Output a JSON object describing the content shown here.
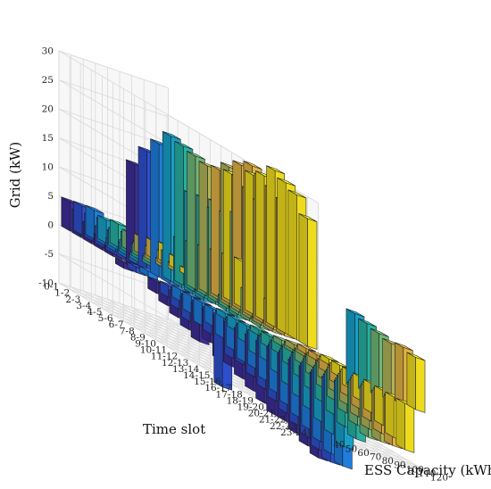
{
  "chart_data": {
    "type": "bar3d",
    "xlabel": "ESS Capacity (kWh)",
    "ylabel": "Time slot",
    "zlabel": "Grid (kW)",
    "zlim": [
      -10,
      30
    ],
    "z_ticks": [
      "-10",
      "-5",
      "0",
      "5",
      "10",
      "15",
      "20",
      "25",
      "30"
    ],
    "ess_capacities": [
      "40",
      "50",
      "60",
      "70",
      "80",
      "90",
      "100",
      "110",
      "120"
    ],
    "time_slots": [
      "0-1",
      "1-2",
      "2-3",
      "3-4",
      "4-5",
      "5-6",
      "6-7",
      "7-8",
      "8-9",
      "9-10",
      "10-11",
      "11-12",
      "12-13",
      "13-14",
      "14-15",
      "15-16",
      "16-17",
      "17-18",
      "18-19",
      "19-20",
      "20-21",
      "21-22",
      "22-23",
      "23-24"
    ],
    "colors": [
      "#3e2f9e",
      "#2f52d6",
      "#1f82e6",
      "#18a6d0",
      "#28b7a8",
      "#74be7c",
      "#b7ba5b",
      "#e9b847",
      "#f8e41f"
    ],
    "series": [
      {
        "capacity": "40",
        "values": [
          5,
          4,
          3,
          2,
          1,
          -1,
          18,
          0,
          -2,
          -3,
          -4,
          -5,
          -6,
          -5,
          -7,
          -7,
          -8,
          -9,
          -10,
          -11,
          -11,
          -12,
          -13,
          -14
        ]
      },
      {
        "capacity": "50",
        "values": [
          5,
          4,
          3,
          2,
          1,
          -1,
          21,
          0,
          -2,
          -3,
          -4,
          -3,
          -4,
          -12,
          -6,
          -6,
          -7,
          -8,
          -9,
          -10,
          -11,
          -12,
          -13,
          -14
        ]
      },
      {
        "capacity": "60",
        "values": [
          5,
          4,
          3,
          2,
          1,
          -1,
          23,
          5,
          -2,
          -3,
          -4,
          -3,
          -4,
          -5,
          -6,
          -6,
          -7,
          -8,
          -9,
          -10,
          -11,
          -12,
          -13,
          -14
        ]
      },
      {
        "capacity": "70",
        "values": [
          4,
          3,
          2,
          1,
          0,
          0,
          25,
          8,
          17,
          1,
          0,
          -1,
          -2,
          -3,
          -4,
          -4,
          -5,
          -6,
          -7,
          -8,
          -9,
          -10,
          -11,
          13
        ]
      },
      {
        "capacity": "80",
        "values": [
          4,
          3,
          2,
          1,
          0,
          0,
          24,
          8,
          17,
          16,
          2,
          1,
          0,
          -1,
          -2,
          -2,
          -3,
          -4,
          -5,
          -6,
          -7,
          -8,
          -9,
          12
        ]
      },
      {
        "capacity": "90",
        "values": [
          3,
          2,
          1,
          0,
          0,
          0,
          23,
          8,
          17,
          16,
          17,
          5,
          1,
          0,
          -1,
          -1,
          -2,
          -3,
          -4,
          -5,
          -6,
          -7,
          -8,
          11
        ]
      },
      {
        "capacity": "100",
        "values": [
          3,
          2,
          1,
          0,
          0,
          0,
          22,
          8,
          24,
          23,
          22,
          21,
          5,
          0,
          -1,
          -1,
          -2,
          -3,
          -4,
          -5,
          -6,
          -7,
          -8,
          10
        ]
      },
      {
        "capacity": "110",
        "values": [
          3,
          2,
          1,
          0,
          0,
          0,
          22,
          8,
          25,
          26,
          25,
          24,
          23,
          0,
          -1,
          -1,
          -2,
          -3,
          -4,
          -5,
          -6,
          -7,
          -8,
          10
        ]
      },
      {
        "capacity": "120",
        "values": [
          3,
          2,
          1,
          0,
          0,
          0,
          22,
          8,
          24,
          25,
          27,
          26,
          25,
          22,
          0,
          -1,
          -2,
          -3,
          -4,
          -5,
          -6,
          -7,
          -8,
          9
        ]
      }
    ]
  }
}
